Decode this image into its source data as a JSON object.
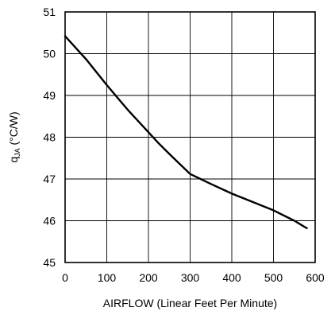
{
  "chart_data": {
    "type": "line",
    "xlabel": "AIRFLOW (Linear Feet Per Minute)",
    "ylabel": {
      "main": "q",
      "sub": "JA",
      "unit": " (°C/W)"
    },
    "xlim": [
      0,
      600
    ],
    "ylim": [
      45,
      51
    ],
    "xticks": [
      0,
      100,
      200,
      300,
      400,
      500,
      600
    ],
    "yticks": [
      45,
      46,
      47,
      48,
      49,
      50,
      51
    ],
    "grid": true,
    "series": [
      {
        "color": "#000000",
        "x": [
          0,
          50,
          100,
          150,
          200,
          225,
          250,
          300,
          350,
          400,
          450,
          500,
          550,
          580
        ],
        "y": [
          50.42,
          49.87,
          49.25,
          48.66,
          48.12,
          47.85,
          47.6,
          47.12,
          46.88,
          46.65,
          46.45,
          46.25,
          46.0,
          45.82
        ]
      }
    ]
  }
}
